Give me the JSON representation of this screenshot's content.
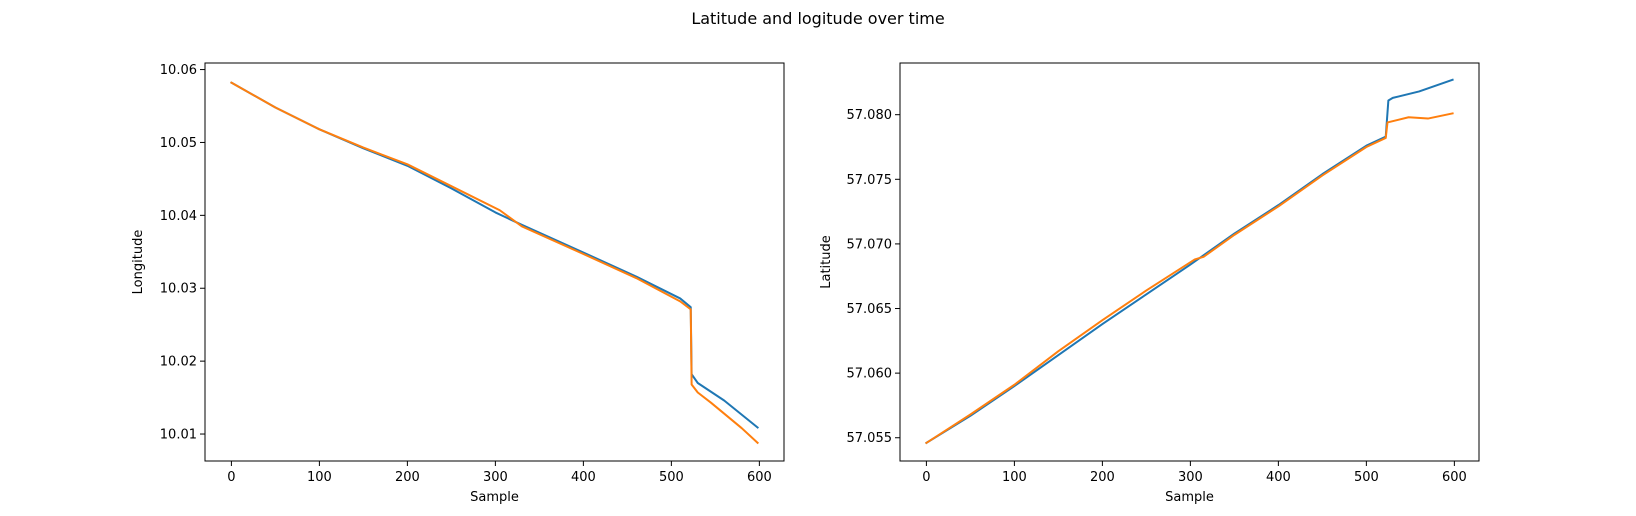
{
  "figure": {
    "title": "Latitude and logitude over time"
  },
  "chart_data": [
    {
      "type": "line",
      "title": "",
      "xlabel": "Sample",
      "ylabel": "Longitude",
      "xlim": [
        -30,
        628
      ],
      "ylim": [
        10.0063,
        10.0609
      ],
      "xticks": [
        0,
        100,
        200,
        300,
        400,
        500,
        600
      ],
      "yticks": [
        10.01,
        10.02,
        10.03,
        10.04,
        10.05,
        10.06
      ],
      "ytick_labels": [
        "10.01",
        "10.02",
        "10.03",
        "10.04",
        "10.05",
        "10.06"
      ],
      "grid": false,
      "series": [
        {
          "color": "#1f77b4",
          "x": [
            0,
            50,
            100,
            150,
            200,
            250,
            300,
            330,
            400,
            460,
            510,
            522,
            523,
            530,
            560,
            598
          ],
          "y": [
            10.0582,
            10.0548,
            10.0518,
            10.0492,
            10.0468,
            10.0437,
            10.0404,
            10.0387,
            10.0349,
            10.0316,
            10.0286,
            10.0274,
            10.0182,
            10.017,
            10.0146,
            10.0109
          ]
        },
        {
          "color": "#ff7f0e",
          "x": [
            0,
            50,
            100,
            150,
            200,
            250,
            305,
            330,
            400,
            460,
            510,
            522,
            523,
            530,
            545,
            580,
            598
          ],
          "y": [
            10.0582,
            10.0548,
            10.0518,
            10.0493,
            10.047,
            10.044,
            10.0407,
            10.0385,
            10.0347,
            10.0314,
            10.0282,
            10.0271,
            10.0168,
            10.0157,
            10.0143,
            10.0108,
            10.0088
          ]
        }
      ]
    },
    {
      "type": "line",
      "title": "",
      "xlabel": "Sample",
      "ylabel": "Latitude",
      "xlim": [
        -30,
        628
      ],
      "ylim": [
        57.0532,
        57.084
      ],
      "xticks": [
        0,
        100,
        200,
        300,
        400,
        500,
        600
      ],
      "yticks": [
        57.055,
        57.06,
        57.065,
        57.07,
        57.075,
        57.08
      ],
      "ytick_labels": [
        "57.055",
        "57.060",
        "57.065",
        "57.070",
        "57.075",
        "57.080"
      ],
      "grid": false,
      "series": [
        {
          "color": "#1f77b4",
          "x": [
            0,
            50,
            100,
            150,
            200,
            250,
            300,
            350,
            400,
            450,
            500,
            522,
            525,
            530,
            560,
            598
          ],
          "y": [
            57.0546,
            57.0567,
            57.059,
            57.0614,
            57.0638,
            57.0661,
            57.0684,
            57.0708,
            57.073,
            57.0754,
            57.0776,
            57.0783,
            57.0811,
            57.0813,
            57.0818,
            57.0827
          ]
        },
        {
          "color": "#ff7f0e",
          "x": [
            0,
            50,
            100,
            150,
            200,
            250,
            305,
            315,
            350,
            400,
            450,
            500,
            522,
            524,
            548,
            570,
            598
          ],
          "y": [
            57.0546,
            57.0568,
            57.0591,
            57.0617,
            57.0641,
            57.0664,
            57.0688,
            57.069,
            57.0707,
            57.0729,
            57.0753,
            57.0775,
            57.0782,
            57.0794,
            57.0798,
            57.0797,
            57.0801
          ]
        }
      ]
    }
  ]
}
